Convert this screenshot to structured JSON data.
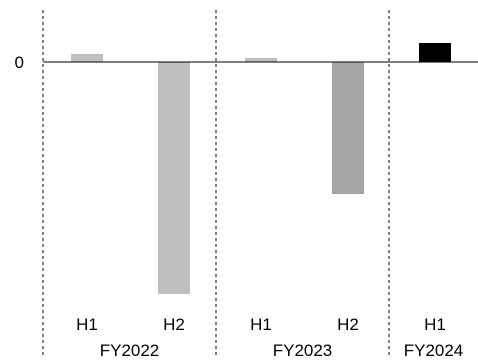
{
  "chart_data": {
    "type": "bar",
    "title": "",
    "xlabel": "",
    "ylabel": "",
    "y_tick_labels": [
      {
        "value": 0,
        "label": "0"
      }
    ],
    "ylim": [
      -270,
      25
    ],
    "grid": false,
    "legend": "none",
    "groups": [
      {
        "label": "FY2022",
        "separator_color": "#000000"
      },
      {
        "label": "FY2023",
        "separator_color": "#000000"
      },
      {
        "label": "FY2024",
        "separator_color": "#000000"
      }
    ],
    "bars": [
      {
        "group": "FY2022",
        "category": "H1",
        "value": 8,
        "color": "#bfbfbf"
      },
      {
        "group": "FY2022",
        "category": "H2",
        "value": -232,
        "color": "#bfbfbf"
      },
      {
        "group": "FY2023",
        "category": "H1",
        "value": 4,
        "color": "#bfbfbf"
      },
      {
        "group": "FY2023",
        "category": "H2",
        "value": -132,
        "color": "#a6a6a6"
      },
      {
        "group": "FY2024",
        "category": "H1",
        "value": 19,
        "color": "#000000"
      }
    ]
  }
}
